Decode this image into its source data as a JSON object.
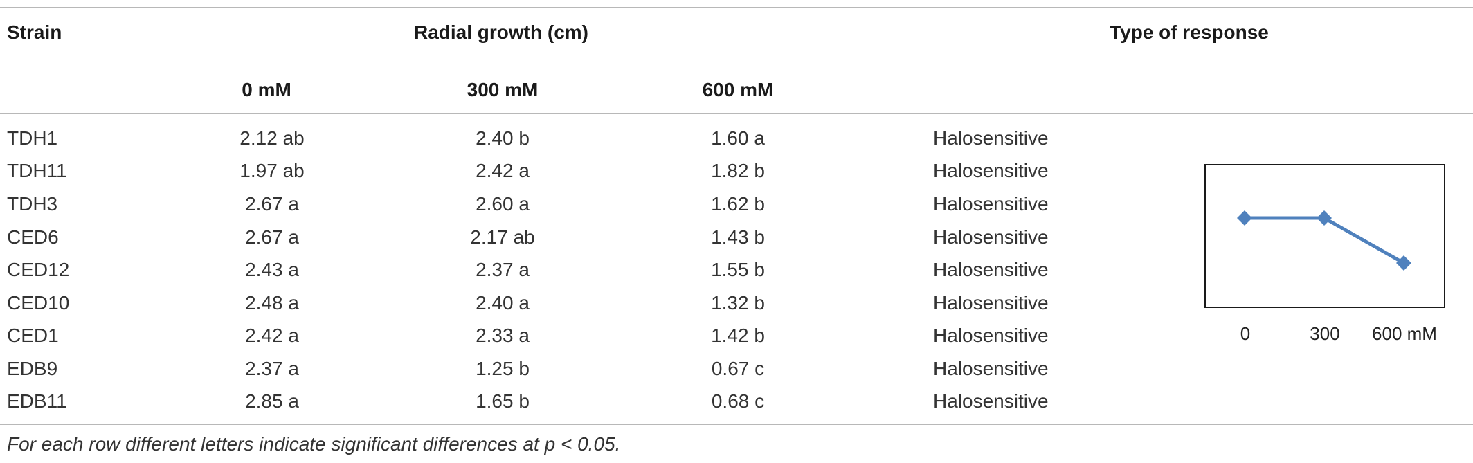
{
  "table": {
    "headers": {
      "strain": "Strain",
      "radial_growth": "Radial growth (cm)",
      "type_of_response": "Type of response",
      "conc": [
        "0 mM",
        "300 mM",
        "600 mM"
      ]
    },
    "rows": [
      {
        "strain": "TDH1",
        "c0": "2.12 ab",
        "c300": "2.40 b",
        "c600": "1.60 a",
        "response": "Halosensitive"
      },
      {
        "strain": "TDH11",
        "c0": "1.97 ab",
        "c300": "2.42 a",
        "c600": "1.82 b",
        "response": "Halosensitive"
      },
      {
        "strain": "TDH3",
        "c0": "2.67 a",
        "c300": "2.60 a",
        "c600": "1.62 b",
        "response": "Halosensitive"
      },
      {
        "strain": "CED6",
        "c0": "2.67 a",
        "c300": "2.17 ab",
        "c600": "1.43 b",
        "response": "Halosensitive"
      },
      {
        "strain": "CED12",
        "c0": "2.43 a",
        "c300": "2.37 a",
        "c600": "1.55 b",
        "response": "Halosensitive"
      },
      {
        "strain": "CED10",
        "c0": "2.48 a",
        "c300": "2.40 a",
        "c600": "1.32 b",
        "response": "Halosensitive"
      },
      {
        "strain": "CED1",
        "c0": "2.42 a",
        "c300": "2.33 a",
        "c600": "1.42 b",
        "response": "Halosensitive"
      },
      {
        "strain": "EDB9",
        "c0": "2.37 a",
        "c300": "1.25 b",
        "c600": "0.67 c",
        "response": "Halosensitive"
      },
      {
        "strain": "EDB11",
        "c0": "2.85 a",
        "c300": "1.65 b",
        "c600": "0.68 c",
        "response": "Halosensitive"
      }
    ],
    "footnote": "For each row different letters indicate significant differences at p < 0.05."
  },
  "chart_data": {
    "type": "line",
    "x": [
      "0",
      "300",
      "600 mM"
    ],
    "values": [
      1,
      1,
      0.5
    ],
    "ylim": [
      0,
      1.6
    ],
    "grid": false,
    "marker": "diamond",
    "series_color": "#4f81bd"
  }
}
